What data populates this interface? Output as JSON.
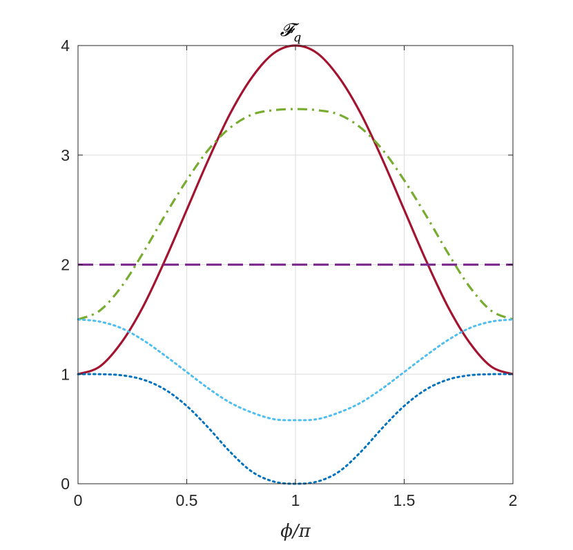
{
  "chart_data": {
    "type": "line",
    "title": "𝓕_q",
    "title_main": "𝓕",
    "title_sub": "q",
    "xlabel": "ϕ/π",
    "ylabel": "",
    "xlim": [
      0,
      2
    ],
    "ylim": [
      0,
      4
    ],
    "xticks": [
      0,
      0.5,
      1,
      1.5,
      2
    ],
    "xtick_labels": [
      "0",
      "0.5",
      "1",
      "1.5",
      "2"
    ],
    "yticks": [
      0,
      1,
      2,
      3,
      4
    ],
    "ytick_labels": [
      "0",
      "1",
      "2",
      "3",
      "4"
    ],
    "grid": true,
    "legend": "none",
    "x": [
      0,
      0.1,
      0.2,
      0.3,
      0.4,
      0.5,
      0.6,
      0.7,
      0.8,
      0.9,
      1.0,
      1.1,
      1.2,
      1.3,
      1.4,
      1.5,
      1.6,
      1.7,
      1.8,
      1.9,
      2.0
    ],
    "series": [
      {
        "color": "#A2142F",
        "dash": "solid",
        "values": [
          1.0,
          1.07,
          1.29,
          1.62,
          2.04,
          2.5,
          2.96,
          3.38,
          3.71,
          3.93,
          4.0,
          3.93,
          3.71,
          3.38,
          2.96,
          2.5,
          2.04,
          1.62,
          1.29,
          1.07,
          1.0
        ]
      },
      {
        "color": "#77AC30",
        "dash": "dash-dot",
        "values": [
          1.5,
          1.58,
          1.8,
          2.11,
          2.45,
          2.77,
          3.05,
          3.25,
          3.37,
          3.41,
          3.42,
          3.41,
          3.37,
          3.25,
          3.05,
          2.77,
          2.45,
          2.11,
          1.8,
          1.58,
          1.5
        ]
      },
      {
        "color": "#7E2F8E",
        "dash": "dashed",
        "values": [
          2.0,
          2.0,
          2.0,
          2.0,
          2.0,
          2.0,
          2.0,
          2.0,
          2.0,
          2.0,
          2.0,
          2.0,
          2.0,
          2.0,
          2.0,
          2.0,
          2.0,
          2.0,
          2.0,
          2.0,
          2.0
        ]
      },
      {
        "color": "#4DBEEE",
        "dash": "dotted",
        "values": [
          1.5,
          1.48,
          1.42,
          1.31,
          1.17,
          1.02,
          0.87,
          0.74,
          0.65,
          0.59,
          0.58,
          0.59,
          0.65,
          0.74,
          0.87,
          1.02,
          1.17,
          1.31,
          1.42,
          1.48,
          1.5
        ]
      },
      {
        "color": "#0072BD",
        "dash": "dotted",
        "values": [
          1.0,
          1.0,
          0.99,
          0.95,
          0.86,
          0.71,
          0.51,
          0.29,
          0.11,
          0.02,
          0.0,
          0.02,
          0.11,
          0.29,
          0.51,
          0.71,
          0.86,
          0.95,
          0.99,
          1.0,
          1.0
        ]
      }
    ]
  }
}
